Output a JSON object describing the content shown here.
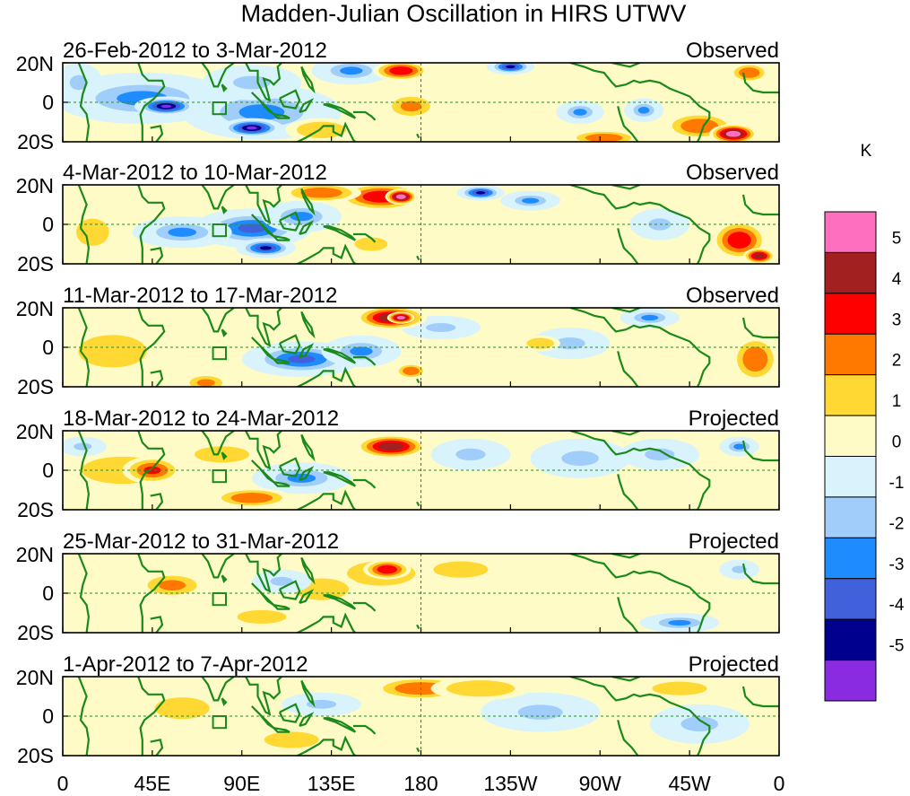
{
  "chart_data": {
    "type": "heatmap",
    "title": "Madden-Julian Oscillation in HIRS UTWV",
    "colorbar": {
      "unit": "K",
      "levels": [
        "5",
        "4",
        "3",
        "2",
        "1",
        "0",
        "-1",
        "-2",
        "-3",
        "-4",
        "-5"
      ],
      "colors": [
        "#ff6fbf",
        "#a32020",
        "#ff0000",
        "#ff7800",
        "#ffd833",
        "#fffbc7",
        "#d8f3fb",
        "#a0cdfa",
        "#1e8cff",
        "#4060dc",
        "#00008f",
        "#8a2be2"
      ]
    },
    "x_tick_labels": [
      "0",
      "45E",
      "90E",
      "135E",
      "180",
      "135W",
      "90W",
      "45W",
      "0"
    ],
    "y_tick_labels": [
      "20N",
      "0",
      "20S"
    ],
    "xlim": [
      0,
      360
    ],
    "ylim": [
      -20,
      20
    ],
    "panels": [
      {
        "date_range": "26-Feb-2012 to 3-Mar-2012",
        "status": "Observed",
        "anomalies": [
          {
            "lon": 52,
            "lat": -2,
            "value": -5.3,
            "dlon": 16,
            "dlat": 5
          },
          {
            "lon": 95,
            "lat": -13,
            "value": -5.1,
            "dlon": 16,
            "dlat": 5
          },
          {
            "lon": 40,
            "lat": 2,
            "value": -2.6,
            "dlon": 45,
            "dlat": 13
          },
          {
            "lon": 100,
            "lat": -5,
            "value": -2.4,
            "dlon": 40,
            "dlat": 14
          },
          {
            "lon": 95,
            "lat": 10,
            "value": -1.6,
            "dlon": 25,
            "dlat": 9
          },
          {
            "lon": 8,
            "lat": 10,
            "value": -1.6,
            "dlon": 12,
            "dlat": 10
          },
          {
            "lon": 145,
            "lat": 16,
            "value": -2.5,
            "dlon": 20,
            "dlat": 7
          },
          {
            "lon": 225,
            "lat": 18,
            "value": -4.8,
            "dlon": 12,
            "dlat": 4
          },
          {
            "lon": 260,
            "lat": -5,
            "value": -2.4,
            "dlon": 12,
            "dlat": 6
          },
          {
            "lon": 292,
            "lat": -4,
            "value": -2.2,
            "dlon": 10,
            "dlat": 6
          },
          {
            "lon": 130,
            "lat": -14,
            "value": 1.6,
            "dlon": 18,
            "dlat": 6
          },
          {
            "lon": 175,
            "lat": -2,
            "value": 2.0,
            "dlon": 14,
            "dlat": 7
          },
          {
            "lon": 170,
            "lat": 16,
            "value": 3.3,
            "dlon": 14,
            "dlat": 5
          },
          {
            "lon": 272,
            "lat": -18,
            "value": 2.8,
            "dlon": 18,
            "dlat": 4
          },
          {
            "lon": 337,
            "lat": -16,
            "value": 5.3,
            "dlon": 12,
            "dlat": 5
          },
          {
            "lon": 320,
            "lat": -12,
            "value": 2.2,
            "dlon": 18,
            "dlat": 7
          },
          {
            "lon": 345,
            "lat": 15,
            "value": 2.2,
            "dlon": 10,
            "dlat": 5
          }
        ]
      },
      {
        "date_range": "4-Mar-2012 to 10-Mar-2012",
        "status": "Observed",
        "anomalies": [
          {
            "lon": 102,
            "lat": -12,
            "value": -5.0,
            "dlon": 15,
            "dlat": 5
          },
          {
            "lon": 95,
            "lat": -2,
            "value": -3.8,
            "dlon": 30,
            "dlat": 10
          },
          {
            "lon": 60,
            "lat": -4,
            "value": -2.8,
            "dlon": 25,
            "dlat": 8
          },
          {
            "lon": 120,
            "lat": 4,
            "value": -2.4,
            "dlon": 20,
            "dlat": 8
          },
          {
            "lon": 210,
            "lat": 16,
            "value": -4.3,
            "dlon": 12,
            "dlat": 4
          },
          {
            "lon": 235,
            "lat": 12,
            "value": -2.6,
            "dlon": 15,
            "dlat": 5
          },
          {
            "lon": 300,
            "lat": 0,
            "value": -1.6,
            "dlon": 15,
            "dlat": 8
          },
          {
            "lon": 160,
            "lat": 14,
            "value": 3.2,
            "dlon": 22,
            "dlat": 7
          },
          {
            "lon": 170,
            "lat": 14,
            "value": 5.3,
            "dlon": 8,
            "dlat": 4
          },
          {
            "lon": 130,
            "lat": 16,
            "value": 2.2,
            "dlon": 20,
            "dlat": 5
          },
          {
            "lon": 15,
            "lat": -4,
            "value": 1.7,
            "dlon": 12,
            "dlat": 10
          },
          {
            "lon": 340,
            "lat": -8,
            "value": 3.4,
            "dlon": 14,
            "dlat": 10
          },
          {
            "lon": 350,
            "lat": -16,
            "value": 4.3,
            "dlon": 8,
            "dlat": 4
          },
          {
            "lon": 155,
            "lat": -10,
            "value": 1.6,
            "dlon": 12,
            "dlat": 5
          }
        ]
      },
      {
        "date_range": "11-Mar-2012 to 17-Mar-2012",
        "status": "Observed",
        "anomalies": [
          {
            "lon": 120,
            "lat": -6,
            "value": -3.3,
            "dlon": 30,
            "dlat": 9
          },
          {
            "lon": 150,
            "lat": -2,
            "value": -2.6,
            "dlon": 20,
            "dlat": 8
          },
          {
            "lon": 190,
            "lat": 10,
            "value": -1.3,
            "dlon": 20,
            "dlat": 6
          },
          {
            "lon": 255,
            "lat": 2,
            "value": -1.6,
            "dlon": 20,
            "dlat": 8
          },
          {
            "lon": 295,
            "lat": 15,
            "value": -2.2,
            "dlon": 15,
            "dlat": 5
          },
          {
            "lon": 165,
            "lat": 15,
            "value": 4.4,
            "dlon": 18,
            "dlat": 6
          },
          {
            "lon": 170,
            "lat": 15,
            "value": 5.3,
            "dlon": 7,
            "dlat": 3
          },
          {
            "lon": 25,
            "lat": -2,
            "value": 1.9,
            "dlon": 25,
            "dlat": 12
          },
          {
            "lon": 72,
            "lat": -18,
            "value": 2.0,
            "dlon": 12,
            "dlat": 5
          },
          {
            "lon": 175,
            "lat": -12,
            "value": 2.2,
            "dlon": 8,
            "dlat": 4
          },
          {
            "lon": 348,
            "lat": -6,
            "value": 2.6,
            "dlon": 12,
            "dlat": 12
          },
          {
            "lon": 240,
            "lat": 2,
            "value": 1.5,
            "dlon": 10,
            "dlat": 4
          }
        ]
      },
      {
        "date_range": "18-Mar-2012 to 24-Mar-2012",
        "status": "Projected",
        "anomalies": [
          {
            "lon": 165,
            "lat": 12,
            "value": 4.3,
            "dlon": 18,
            "dlat": 6
          },
          {
            "lon": 45,
            "lat": 0,
            "value": 3.0,
            "dlon": 15,
            "dlat": 7
          },
          {
            "lon": 30,
            "lat": 0,
            "value": 1.6,
            "dlon": 30,
            "dlat": 10
          },
          {
            "lon": 95,
            "lat": -14,
            "value": 2.1,
            "dlon": 20,
            "dlat": 5
          },
          {
            "lon": 80,
            "lat": 8,
            "value": 1.4,
            "dlon": 20,
            "dlat": 6
          },
          {
            "lon": 120,
            "lat": -4,
            "value": -2.4,
            "dlon": 25,
            "dlat": 8
          },
          {
            "lon": 205,
            "lat": 8,
            "value": -1.6,
            "dlon": 20,
            "dlat": 8
          },
          {
            "lon": 260,
            "lat": 6,
            "value": -1.4,
            "dlon": 25,
            "dlat": 10
          },
          {
            "lon": 300,
            "lat": 8,
            "value": -1.6,
            "dlon": 20,
            "dlat": 8
          },
          {
            "lon": 340,
            "lat": 12,
            "value": -2.2,
            "dlon": 10,
            "dlat": 5
          },
          {
            "lon": 10,
            "lat": 12,
            "value": -1.3,
            "dlon": 12,
            "dlat": 5
          }
        ]
      },
      {
        "date_range": "25-Mar-2012 to 31-Mar-2012",
        "status": "Projected",
        "anomalies": [
          {
            "lon": 163,
            "lat": 12,
            "value": 3.6,
            "dlon": 12,
            "dlat": 5
          },
          {
            "lon": 160,
            "lat": 10,
            "value": 1.8,
            "dlon": 25,
            "dlat": 9
          },
          {
            "lon": 55,
            "lat": 4,
            "value": 2.0,
            "dlon": 18,
            "dlat": 7
          },
          {
            "lon": 100,
            "lat": -12,
            "value": 1.8,
            "dlon": 18,
            "dlat": 5
          },
          {
            "lon": 130,
            "lat": 2,
            "value": 1.4,
            "dlon": 20,
            "dlat": 8
          },
          {
            "lon": 110,
            "lat": 6,
            "value": -1.3,
            "dlon": 15,
            "dlat": 6
          },
          {
            "lon": 200,
            "lat": 12,
            "value": 1.2,
            "dlon": 20,
            "dlat": 6
          },
          {
            "lon": 310,
            "lat": -15,
            "value": -2.6,
            "dlon": 20,
            "dlat": 5
          },
          {
            "lon": 340,
            "lat": 12,
            "value": -2.0,
            "dlon": 10,
            "dlat": 5
          }
        ]
      },
      {
        "date_range": "1-Apr-2012 to 7-Apr-2012",
        "status": "Projected",
        "anomalies": [
          {
            "lon": 180,
            "lat": 14,
            "value": 2.2,
            "dlon": 25,
            "dlat": 6
          },
          {
            "lon": 210,
            "lat": 14,
            "value": 1.6,
            "dlon": 25,
            "dlat": 6
          },
          {
            "lon": 60,
            "lat": 4,
            "value": 1.4,
            "dlon": 20,
            "dlat": 8
          },
          {
            "lon": 115,
            "lat": -12,
            "value": 1.4,
            "dlon": 20,
            "dlat": 6
          },
          {
            "lon": 130,
            "lat": 6,
            "value": -1.6,
            "dlon": 20,
            "dlat": 6
          },
          {
            "lon": 240,
            "lat": 2,
            "value": -1.2,
            "dlon": 30,
            "dlat": 10
          },
          {
            "lon": 320,
            "lat": -4,
            "value": -1.4,
            "dlon": 25,
            "dlat": 10
          },
          {
            "lon": 310,
            "lat": 14,
            "value": 1.4,
            "dlon": 20,
            "dlat": 5
          }
        ]
      }
    ]
  }
}
